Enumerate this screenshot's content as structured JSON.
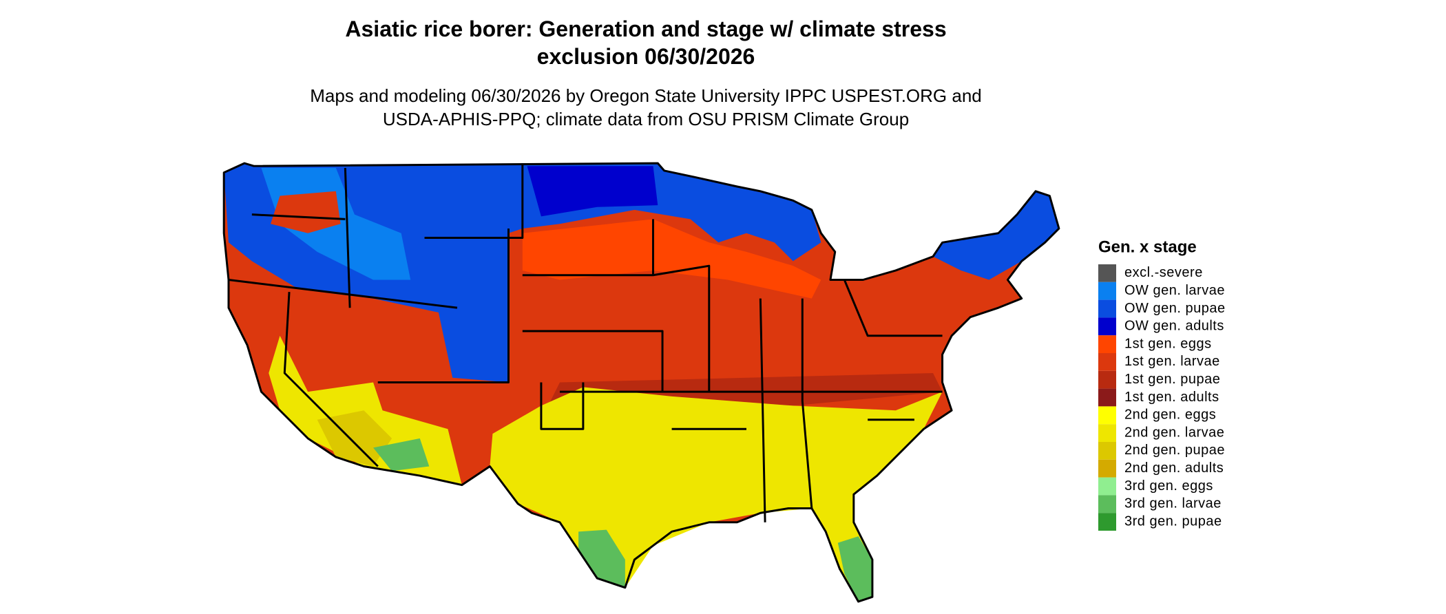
{
  "title": "Asiatic rice borer: Generation and stage w/ climate stress exclusion 06/30/2026",
  "subtitle": "Maps and modeling 06/30/2026 by Oregon State University IPPC USPEST.ORG and USDA-APHIS-PPQ; climate data from OSU PRISM Climate Group",
  "legend": {
    "title": "Gen. x stage",
    "items": [
      {
        "label": "excl.-severe",
        "color": "#555555"
      },
      {
        "label": "OW gen. larvae",
        "color": "#0a80f0"
      },
      {
        "label": "OW gen. pupae",
        "color": "#0a4de0"
      },
      {
        "label": "OW gen. adults",
        "color": "#0000cd"
      },
      {
        "label": "1st gen. eggs",
        "color": "#ff4500"
      },
      {
        "label": "1st gen. larvae",
        "color": "#dc380e"
      },
      {
        "label": "1st gen. pupae",
        "color": "#b82a10"
      },
      {
        "label": "1st gen. adults",
        "color": "#8b1a1a"
      },
      {
        "label": "2nd gen. eggs",
        "color": "#ffff00"
      },
      {
        "label": "2nd gen. larvae",
        "color": "#eee600"
      },
      {
        "label": "2nd gen. pupae",
        "color": "#dcc800"
      },
      {
        "label": "2nd gen. adults",
        "color": "#d4aa00"
      },
      {
        "label": "3rd gen. eggs",
        "color": "#90ee90"
      },
      {
        "label": "3rd gen. larvae",
        "color": "#5cbd5c"
      },
      {
        "label": "3rd gen. pupae",
        "color": "#2e9a2e"
      }
    ]
  }
}
